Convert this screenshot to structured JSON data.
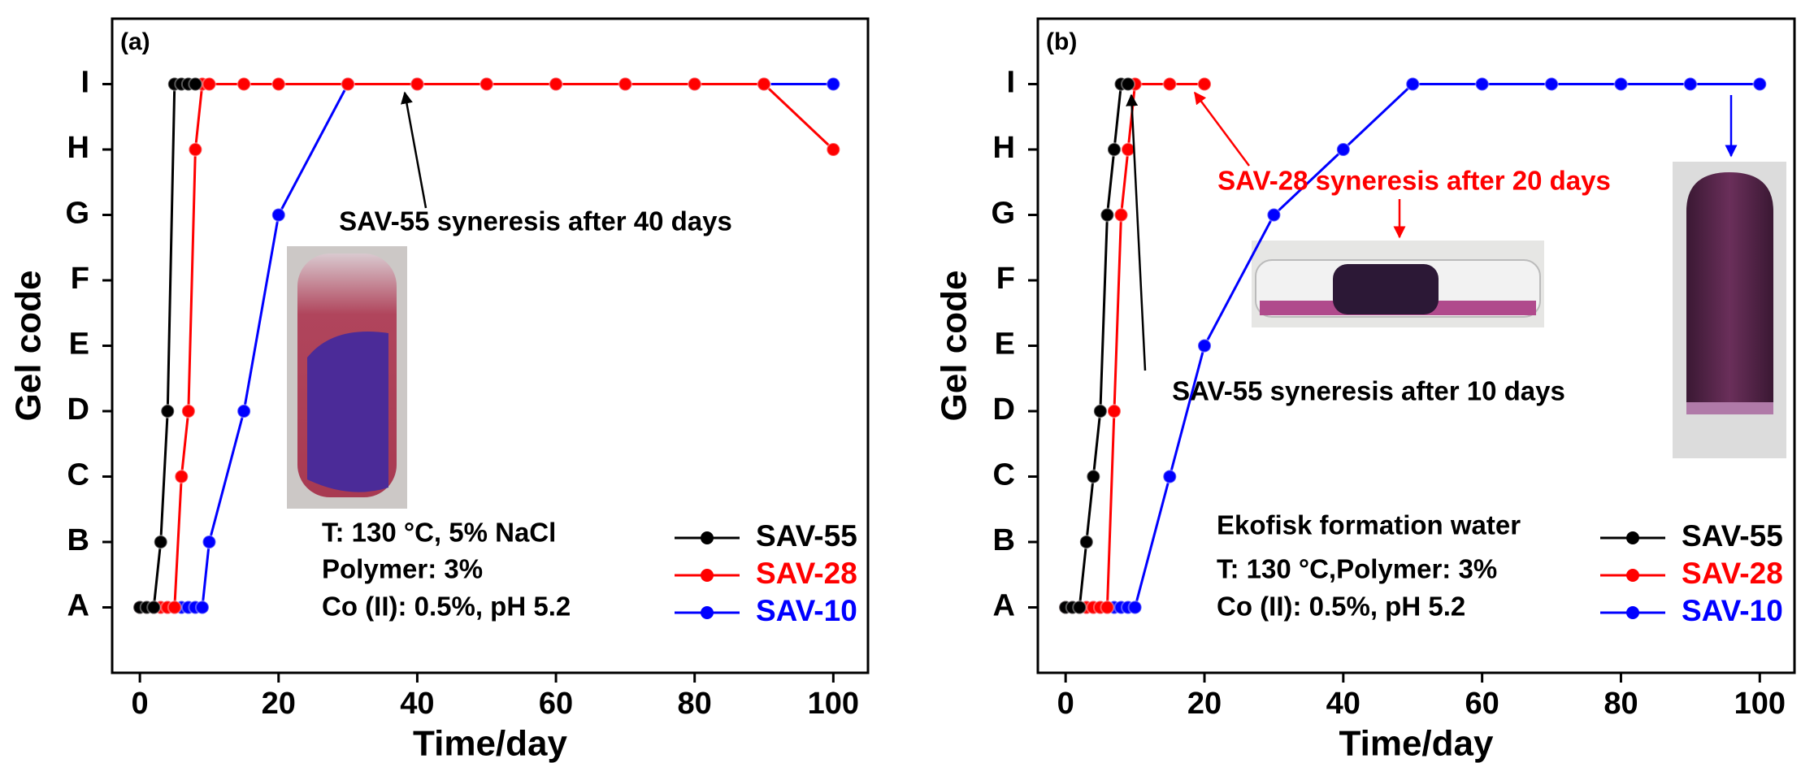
{
  "chart_data": [
    {
      "type": "line",
      "panel_label": "(a)",
      "x_label": "Time/day",
      "y_label": "Gel code",
      "xlim": [
        -4,
        105
      ],
      "xticks": [
        0,
        20,
        40,
        60,
        80,
        100
      ],
      "ylim": [
        0,
        10
      ],
      "yticks": [
        {
          "value": 1,
          "label": "A"
        },
        {
          "value": 2,
          "label": "B"
        },
        {
          "value": 3,
          "label": "C"
        },
        {
          "value": 4,
          "label": "D"
        },
        {
          "value": 5,
          "label": "E"
        },
        {
          "value": 6,
          "label": "F"
        },
        {
          "value": 7,
          "label": "G"
        },
        {
          "value": 8,
          "label": "H"
        },
        {
          "value": 9,
          "label": "I"
        }
      ],
      "series": [
        {
          "name": "SAV-55",
          "color": "#000000",
          "x": [
            0,
            1,
            2,
            3,
            4,
            5,
            6,
            7,
            8
          ],
          "values": [
            1,
            1,
            1,
            2,
            4,
            9,
            9,
            9,
            9
          ]
        },
        {
          "name": "SAV-28",
          "color": "#ff0000",
          "x": [
            0,
            1,
            2,
            3,
            4,
            5,
            6,
            7,
            8,
            9,
            10,
            15,
            20,
            30,
            40,
            50,
            60,
            70,
            80,
            90,
            100
          ],
          "values": [
            1,
            1,
            1,
            1,
            1,
            1,
            3,
            4,
            8,
            9,
            9,
            9,
            9,
            9,
            9,
            9,
            9,
            9,
            9,
            9,
            8
          ]
        },
        {
          "name": "SAV-10",
          "color": "#0000ff",
          "x": [
            0,
            1,
            2,
            3,
            4,
            5,
            6,
            7,
            8,
            9,
            10,
            15,
            20,
            30,
            40,
            50,
            60,
            70,
            80,
            90,
            100
          ],
          "values": [
            1,
            1,
            1,
            1,
            1,
            1,
            1,
            1,
            1,
            1,
            2,
            4,
            7,
            9,
            9,
            9,
            9,
            9,
            9,
            9,
            9
          ]
        }
      ],
      "notes": [
        "T: 130 °C, 5% NaCl",
        "Polymer: 3%",
        "Co (II): 0.5%, pH 5.2"
      ],
      "annotations": [
        {
          "text": "SAV-55 syneresis after 40 days",
          "color": "#000000"
        }
      ],
      "legend": "lower right"
    },
    {
      "type": "line",
      "panel_label": "(b)",
      "x_label": "Time/day",
      "y_label": "Gel code",
      "xlim": [
        -4,
        105
      ],
      "xticks": [
        0,
        20,
        40,
        60,
        80,
        100
      ],
      "ylim": [
        0,
        10
      ],
      "yticks": [
        {
          "value": 1,
          "label": "A"
        },
        {
          "value": 2,
          "label": "B"
        },
        {
          "value": 3,
          "label": "C"
        },
        {
          "value": 4,
          "label": "D"
        },
        {
          "value": 5,
          "label": "E"
        },
        {
          "value": 6,
          "label": "F"
        },
        {
          "value": 7,
          "label": "G"
        },
        {
          "value": 8,
          "label": "H"
        },
        {
          "value": 9,
          "label": "I"
        }
      ],
      "series": [
        {
          "name": "SAV-55",
          "color": "#000000",
          "x": [
            0,
            1,
            2,
            3,
            4,
            5,
            6,
            7,
            8,
            9
          ],
          "values": [
            1,
            1,
            1,
            2,
            3,
            4,
            7,
            8,
            9,
            9
          ]
        },
        {
          "name": "SAV-28",
          "color": "#ff0000",
          "x": [
            0,
            1,
            2,
            3,
            4,
            5,
            6,
            7,
            8,
            9,
            10,
            15,
            20
          ],
          "values": [
            1,
            1,
            1,
            1,
            1,
            1,
            1,
            4,
            7,
            8,
            9,
            9,
            9
          ]
        },
        {
          "name": "SAV-10",
          "color": "#0000ff",
          "x": [
            0,
            1,
            2,
            3,
            4,
            5,
            6,
            7,
            8,
            9,
            10,
            15,
            20,
            30,
            40,
            50,
            60,
            70,
            80,
            90,
            100
          ],
          "values": [
            1,
            1,
            1,
            1,
            1,
            1,
            1,
            1,
            1,
            1,
            1,
            3,
            5,
            7,
            8,
            9,
            9,
            9,
            9,
            9,
            9
          ]
        }
      ],
      "notes": [
        "Ekofisk formation water",
        "T: 130 °C,Polymer: 3%",
        "Co (II): 0.5%, pH 5.2"
      ],
      "annotations": [
        {
          "text": "SAV-28 syneresis after 20 days",
          "color": "#ff0000"
        },
        {
          "text": "SAV-55 syneresis after 10 days",
          "color": "#000000"
        }
      ],
      "legend": "lower right"
    }
  ]
}
